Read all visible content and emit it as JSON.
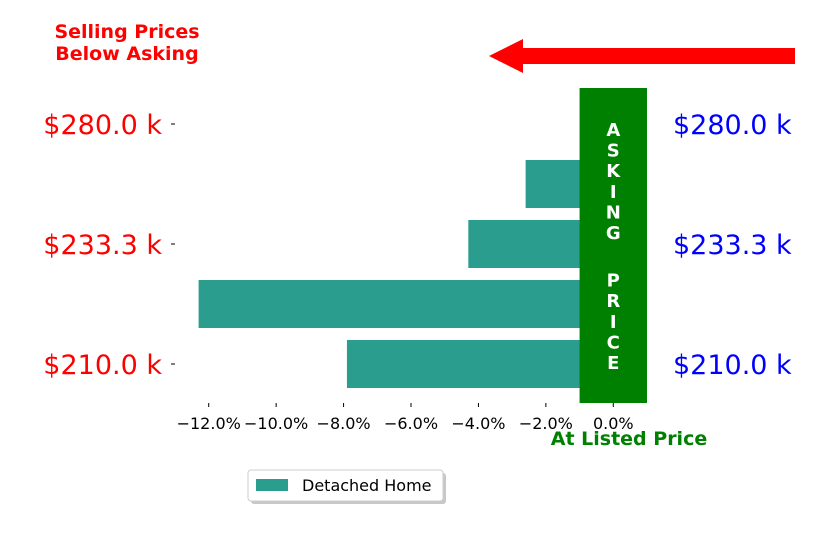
{
  "chart_data": {
    "type": "bar",
    "orientation": "horizontal",
    "series": [
      {
        "name": "Detached Home",
        "color": "#2a9d8f",
        "values": [
          -7.9,
          -12.3,
          -4.3,
          -2.6
        ]
      }
    ],
    "categories_note_free": true,
    "x_ticks": [
      "−12.0%",
      "−10.0%",
      "−8.0%",
      "−6.0%",
      "−4.0%",
      "−2.0%",
      "0.0%"
    ],
    "x_tick_values": [
      -12,
      -10,
      -8,
      -6,
      -4,
      -2,
      0
    ],
    "xlim": [
      -13,
      1
    ],
    "y_ticks_left": [
      "$210.0 k",
      "$233.3 k",
      "$280.0 k"
    ],
    "y_ticks_right": [
      "$210.0 k",
      "$233.3 k",
      "$280.0 k"
    ],
    "y_tick_positions": [
      0,
      2,
      4
    ],
    "ylim": [
      -0.65,
      4.65
    ],
    "legend": {
      "label": "Detached Home",
      "placement": "bottom-left"
    },
    "annotations": {
      "top_left_line1": "Selling Prices",
      "top_left_line2": "Below Asking",
      "bottom_right": "At Listed Price",
      "asking_word": "ASKING",
      "price_word": "PRICE"
    },
    "colors": {
      "left_ticks": "#ff0000",
      "right_ticks": "#0000ff",
      "asking_band": "#008000",
      "arrow": "#ff0000",
      "annotation_left": "#ff0000",
      "annotation_right": "#008000",
      "bar": "#2a9d8f"
    },
    "grid": false
  }
}
